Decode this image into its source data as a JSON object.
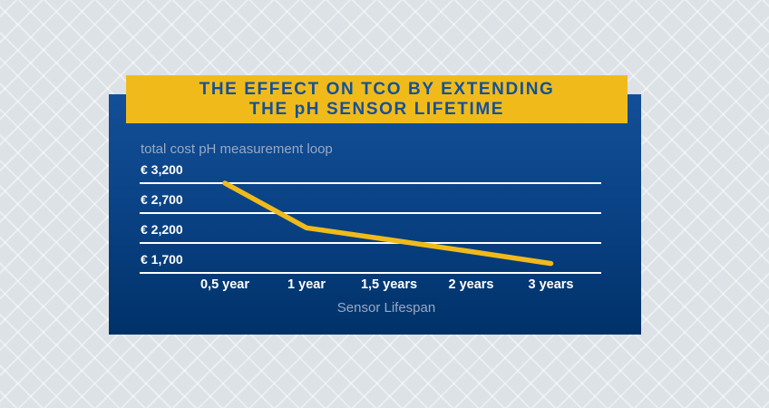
{
  "banner": {
    "title_line1": "THE EFFECT ON TCO BY EXTENDING",
    "title_line2": "THE pH SENSOR LIFETIME"
  },
  "colors": {
    "background": "#dce2e6",
    "banner_yellow": "#f0bb1a",
    "title_blue": "#15509c",
    "panel_blue_top": "#134f97",
    "panel_blue_bottom": "#003269",
    "muted_label": "#9aa9c3",
    "axis_text": "#ffffff",
    "gridline": "#ffffff",
    "trend_line": "#f0bb1a"
  },
  "chart_data": {
    "type": "line",
    "title": "THE EFFECT ON TCO BY EXTENDING THE pH SENSOR LIFETIME",
    "subtitle": "total cost pH measurement loop",
    "xlabel": "Sensor Lifespan",
    "ylabel": "",
    "categories": [
      "0,5 year",
      "1 year",
      "1,5 years",
      "2 years",
      "3 years"
    ],
    "series": [
      {
        "name": "total cost pH measurement loop",
        "color": "#f0bb1a",
        "values": [
          3200,
          2450,
          2250,
          2050,
          1850
        ]
      }
    ],
    "y_ticks": [
      {
        "label": "€ 3,200",
        "value": 3200
      },
      {
        "label": "€ 2,700",
        "value": 2700
      },
      {
        "label": "€ 2,200",
        "value": 2200
      },
      {
        "label": "€ 1,700",
        "value": 1700
      }
    ],
    "ylim": [
      1700,
      3200
    ],
    "grid": "horizontal",
    "legend": "none"
  }
}
